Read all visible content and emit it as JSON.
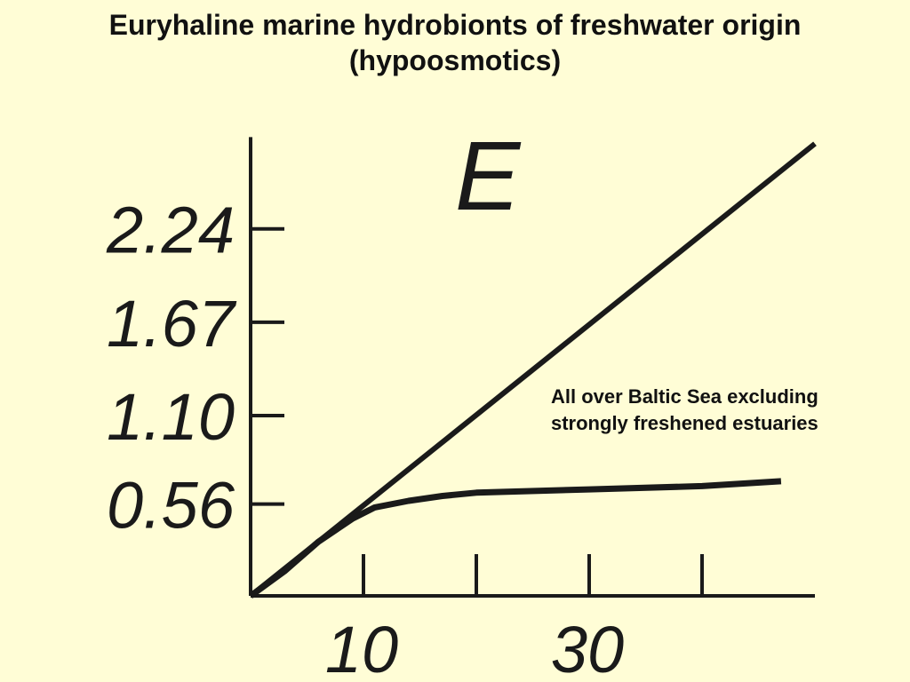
{
  "chart_data": {
    "type": "line",
    "title_lines": [
      "Euryhaline marine hydrobionts of freshwater origin",
      "(hypoosmotics)"
    ],
    "xlabel": "",
    "ylabel": "",
    "xlim": [
      0,
      50
    ],
    "ylim": [
      0,
      2.8
    ],
    "grid": false,
    "y_ticks": [
      {
        "value": 0.56,
        "label": "0.56"
      },
      {
        "value": 1.1,
        "label": "1.10"
      },
      {
        "value": 1.67,
        "label": "1.67"
      },
      {
        "value": 2.24,
        "label": "2.24"
      }
    ],
    "x_ticks": [
      {
        "value": 10,
        "label": "10"
      },
      {
        "value": 20,
        "label": ""
      },
      {
        "value": 30,
        "label": "30"
      },
      {
        "value": 40,
        "label": ""
      }
    ],
    "series": [
      {
        "x": [
          0,
          50
        ],
        "y": [
          0,
          2.76
        ]
      },
      {
        "x": [
          0,
          3,
          6,
          9,
          11,
          14,
          17,
          20,
          30,
          40,
          47
        ],
        "y": [
          0,
          0.15,
          0.33,
          0.47,
          0.54,
          0.58,
          0.61,
          0.63,
          0.65,
          0.67,
          0.7
        ]
      }
    ],
    "region_label": "E",
    "annotation": [
      "All over Baltic Sea excluding",
      "strongly freshened estuaries"
    ]
  }
}
